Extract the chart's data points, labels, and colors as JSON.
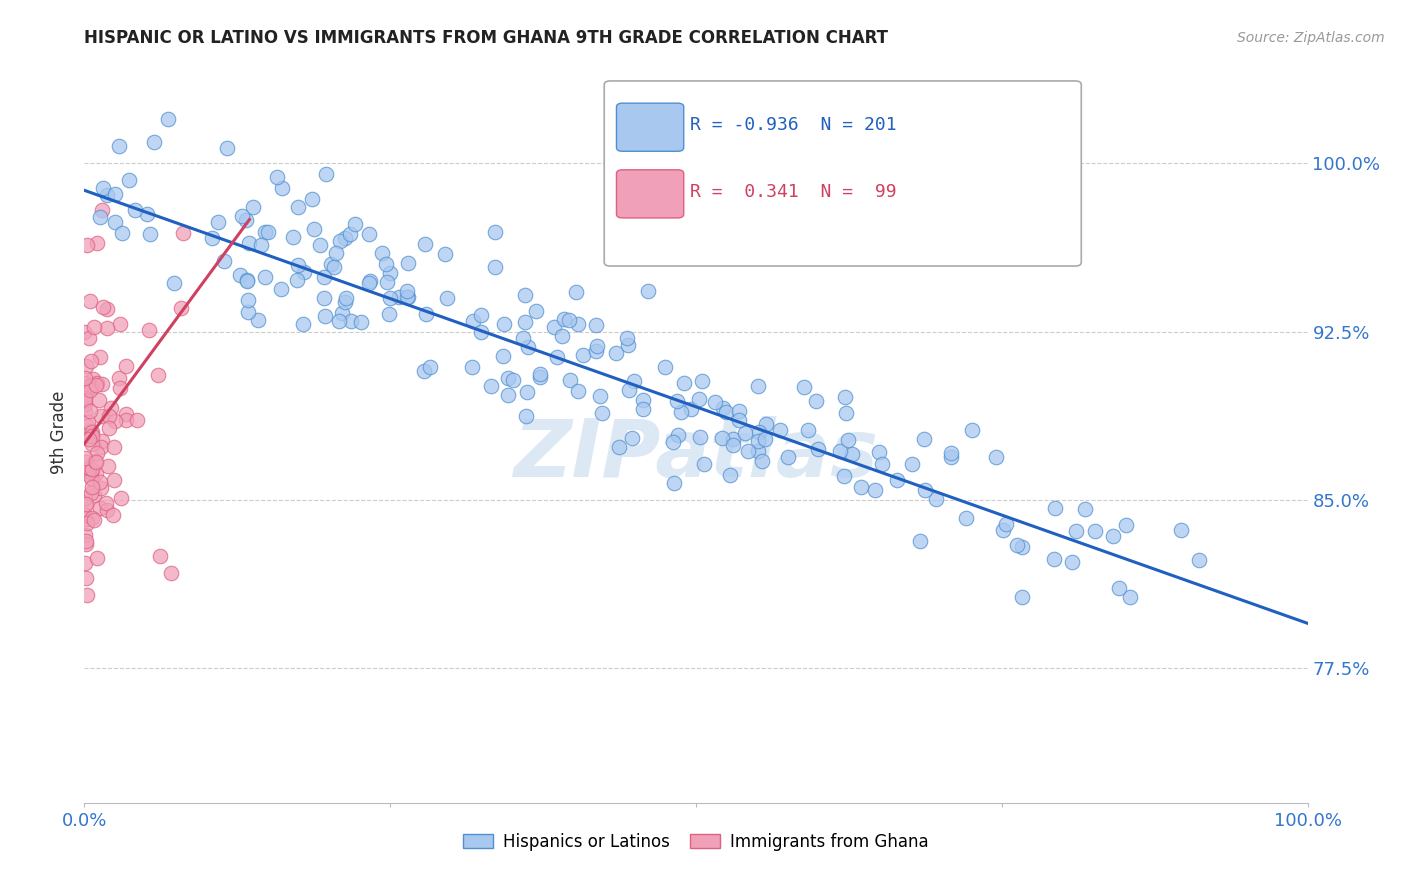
{
  "title": "HISPANIC OR LATINO VS IMMIGRANTS FROM GHANA 9TH GRADE CORRELATION CHART",
  "source": "Source: ZipAtlas.com",
  "ylabel": "9th Grade",
  "ytick_labels": [
    "77.5%",
    "85.0%",
    "92.5%",
    "100.0%"
  ],
  "ytick_values": [
    0.775,
    0.85,
    0.925,
    1.0
  ],
  "legend_blue_r": "-0.936",
  "legend_blue_n": "201",
  "legend_pink_r": " 0.341",
  "legend_pink_n": " 99",
  "blue_color": "#a8c8f0",
  "pink_color": "#f0a0b8",
  "blue_edge_color": "#5090d0",
  "pink_edge_color": "#e06080",
  "blue_line_color": "#2060c0",
  "pink_line_color": "#d04060",
  "watermark_color": "#dde8f5",
  "watermark": "ZIPatlas",
  "blue_trend_start_x": 0.0,
  "blue_trend_start_y": 0.988,
  "blue_trend_end_x": 1.0,
  "blue_trend_end_y": 0.795,
  "pink_trend_start_x": 0.0,
  "pink_trend_start_y": 0.875,
  "pink_trend_end_x": 0.135,
  "pink_trend_end_y": 0.975,
  "xmin": 0.0,
  "xmax": 1.0,
  "ymin": 0.715,
  "ymax": 1.045,
  "background_color": "#ffffff",
  "grid_color": "#cccccc",
  "title_color": "#222222",
  "source_color": "#999999",
  "axis_label_color": "#333333",
  "tick_label_color": "#3377cc"
}
